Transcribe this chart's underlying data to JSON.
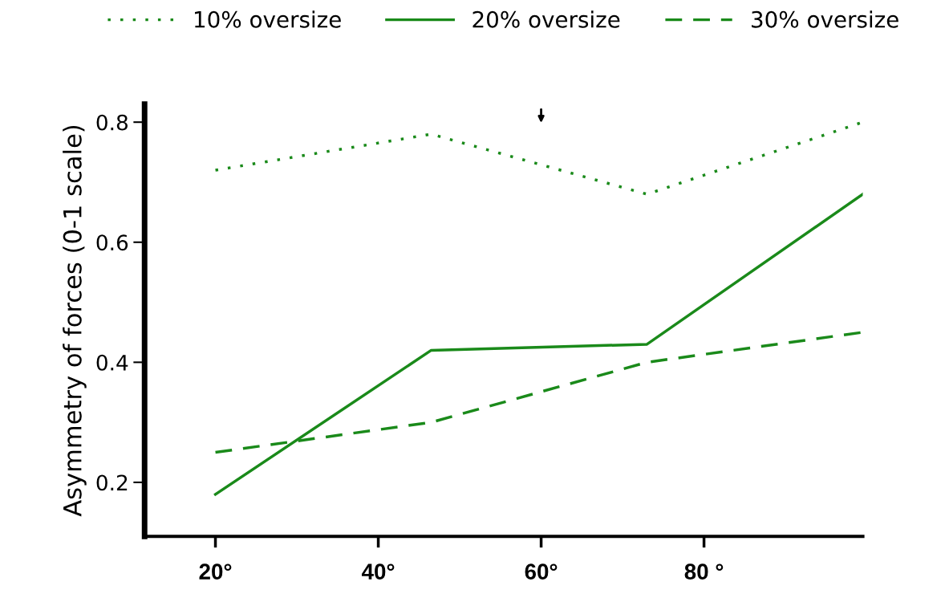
{
  "chart_data": {
    "type": "line",
    "ylabel": "Asymmetry of forces (0-1 scale)",
    "x": [
      20,
      46.5,
      73,
      99.5
    ],
    "series": [
      {
        "name": "10% oversize",
        "color": "#1a8a1a",
        "line_style": "dotted",
        "values": [
          0.72,
          0.78,
          0.68,
          0.8
        ]
      },
      {
        "name": "20% oversize",
        "color": "#1a8a1a",
        "line_style": "solid",
        "values": [
          0.18,
          0.42,
          0.43,
          0.68
        ]
      },
      {
        "name": "30% oversize",
        "color": "#1a8a1a",
        "line_style": "dashed",
        "values": [
          0.25,
          0.3,
          0.4,
          0.45
        ]
      }
    ],
    "xlim": [
      11.3,
      99.5
    ],
    "ylim": [
      0.11,
      0.83
    ],
    "xticks": [
      {
        "value": 20,
        "label": "20°"
      },
      {
        "value": 40,
        "label": "40°"
      },
      {
        "value": 60,
        "label": "60°"
      },
      {
        "value": 80,
        "label": "80 °"
      }
    ],
    "yticks": [
      0.2,
      0.4,
      0.6,
      0.8
    ],
    "legend": "top",
    "grid": false,
    "marker": "none"
  }
}
